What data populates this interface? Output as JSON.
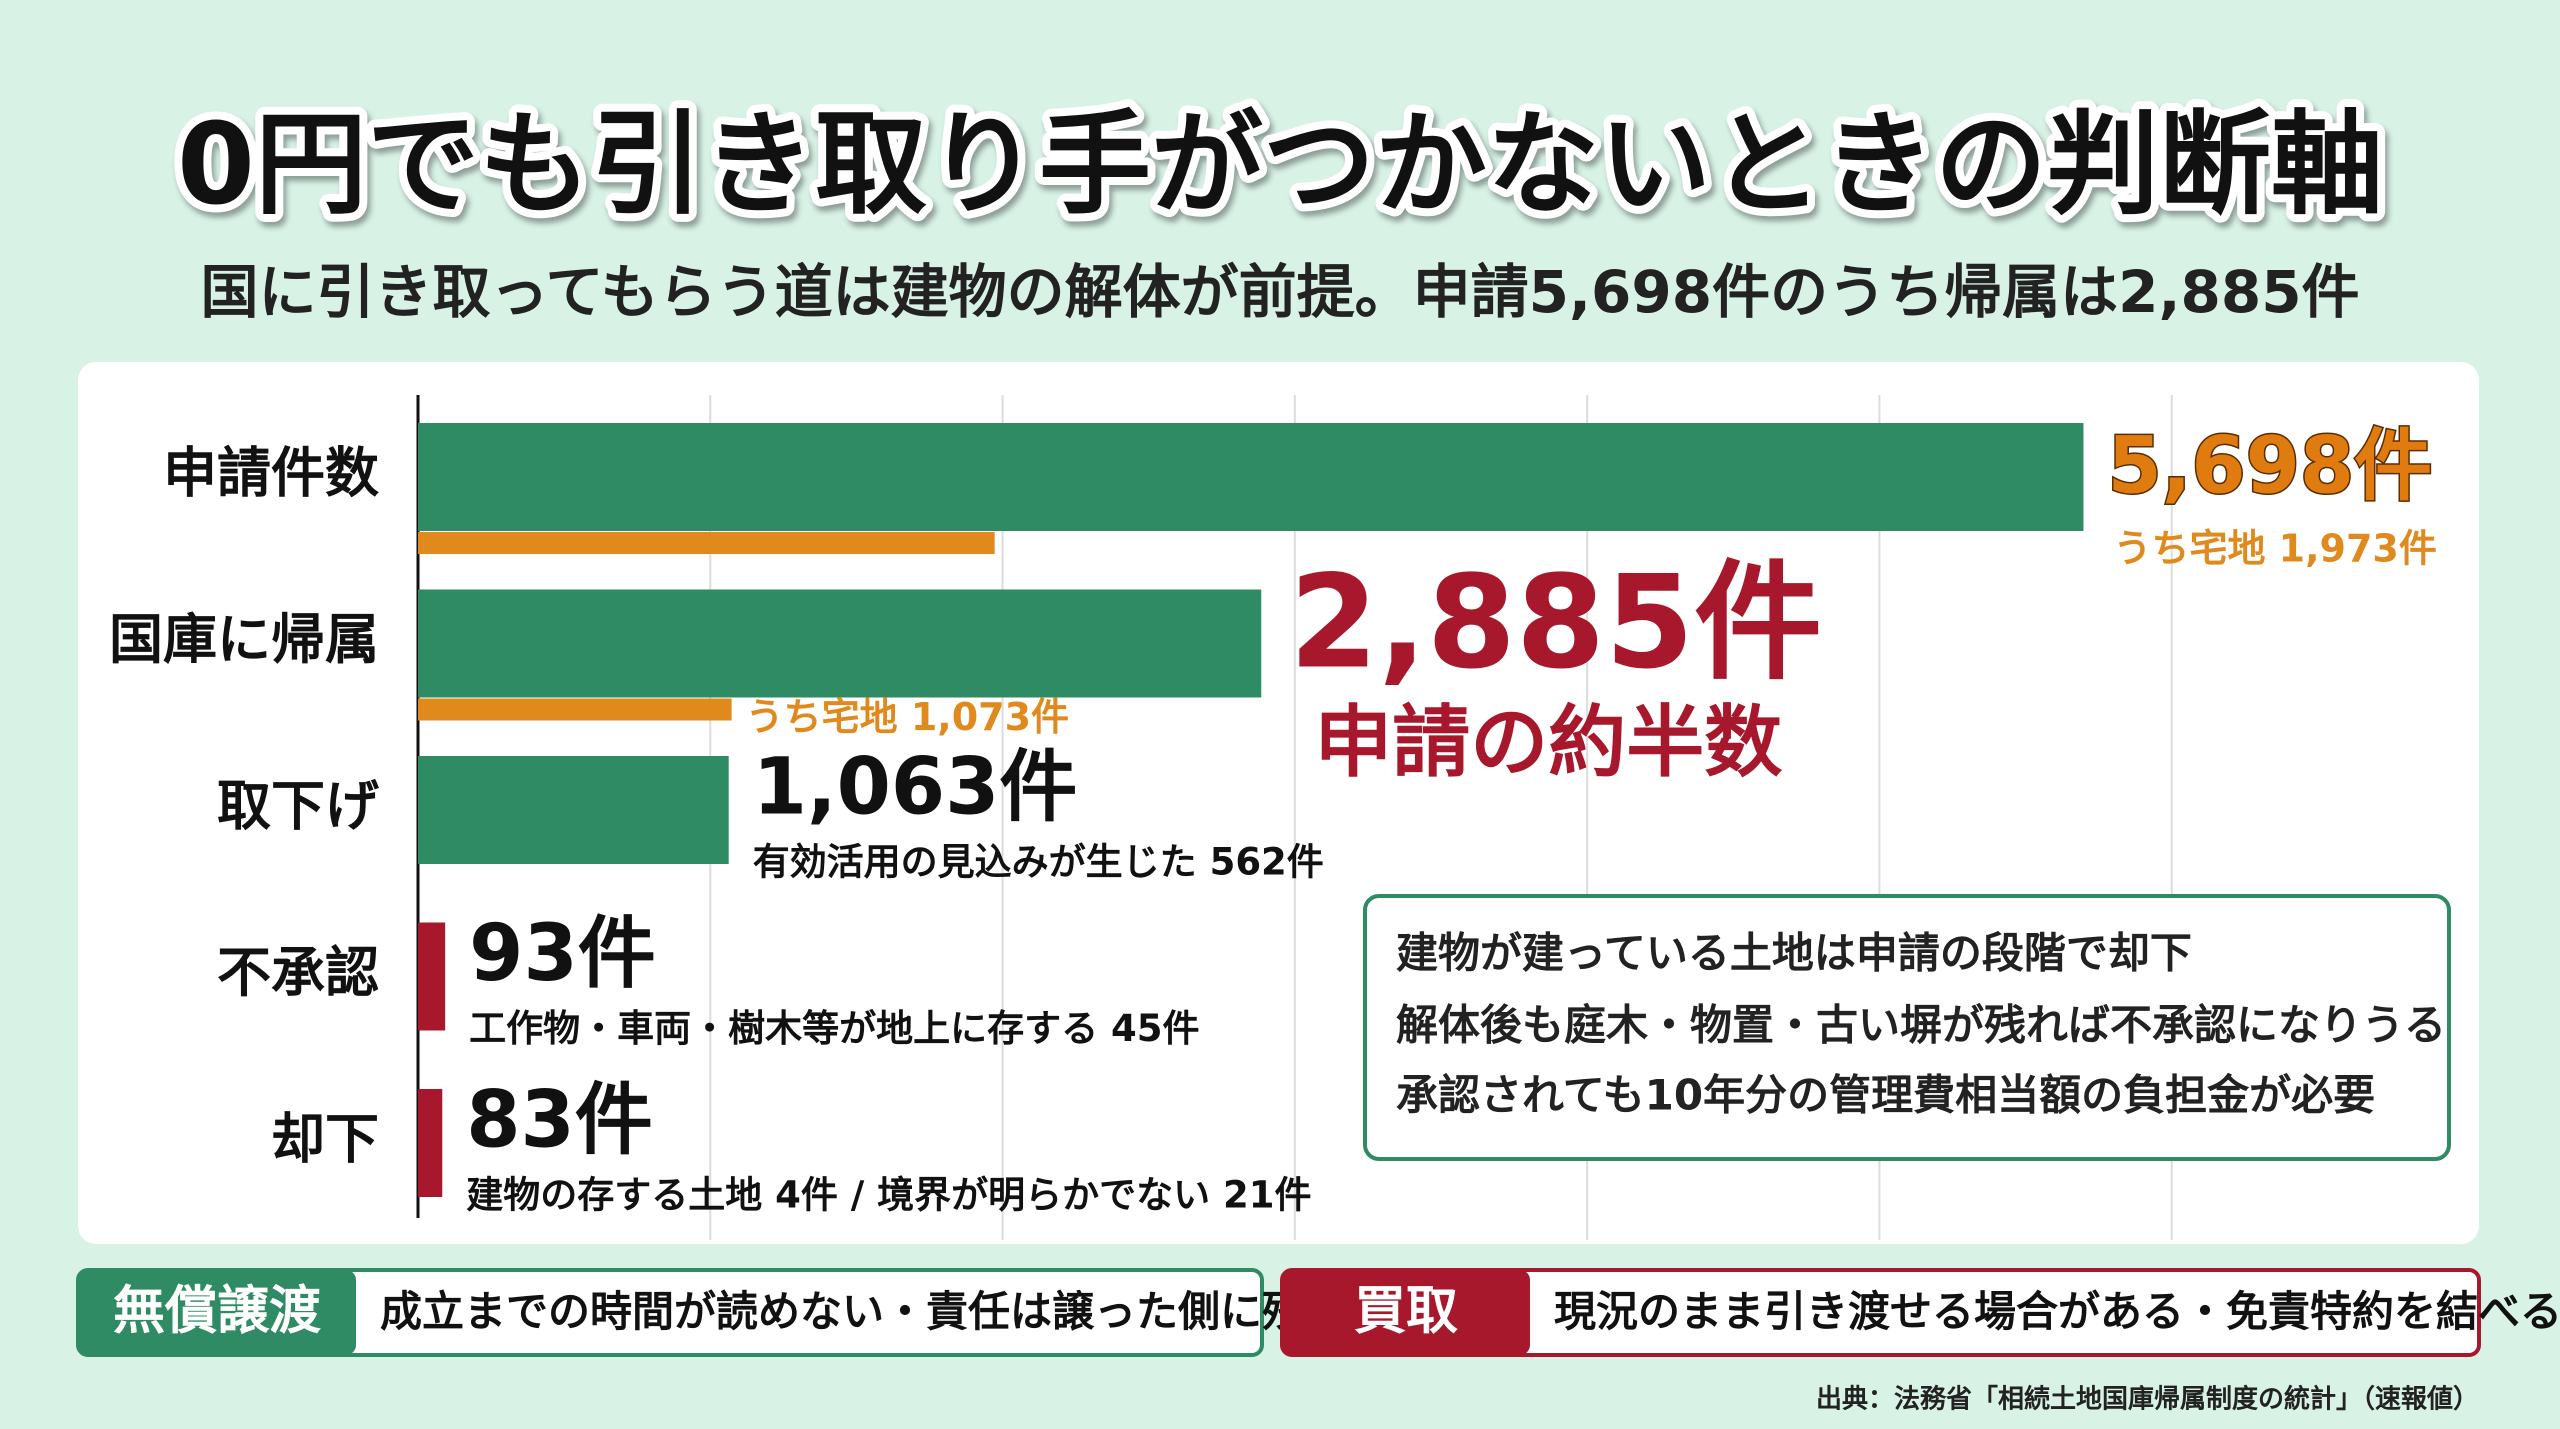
{
  "chart_data": {
    "type": "bar",
    "orientation": "horizontal",
    "title": "0円でも引き取り手がつかないときの判断軸",
    "subtitle": "国に引き取ってもらう道は建物の解体が前提。申請5,698件のうち帰属は2,885件",
    "categories": [
      "申請件数",
      "国庫に帰属",
      "取下げ",
      "不承認",
      "却下"
    ],
    "values": [
      5698,
      2885,
      1063,
      93,
      83
    ],
    "value_labels": [
      "5,698件",
      "2,885件",
      "1,063件",
      "93件",
      "83件"
    ],
    "colors": [
      "#2e8b63",
      "#2e8b63",
      "#2e8b63",
      "#a8182d",
      "#a8182d"
    ],
    "label_colors": [
      "#e07b10",
      "#a8182d",
      "#111111",
      "#111111",
      "#111111"
    ],
    "sub_values": [
      1973,
      1073,
      null,
      null,
      null
    ],
    "sub_value_labels": [
      "うち宅地 1,973件",
      "うち宅地 1,073件",
      null,
      null,
      null
    ],
    "sub_color": "#e08a1e",
    "annotations": [
      null,
      "申請の約半数",
      "有効活用の見込みが生じた 562件",
      "工作物・車両・樹木等が地上に存する 45件",
      "建物の存する土地 4件 / 境界が明らかでない 21件"
    ],
    "xlim": [
      0,
      7000
    ],
    "xticks": [
      1000,
      2000,
      3000,
      4000,
      5000,
      6000
    ],
    "grid": true
  },
  "notes": [
    "建物が建っている土地は申請の段階で却下",
    "解体後も庭木・物置・古い塀が残れば不承認になりうる",
    "承認されても10年分の管理費相当額の負担金が必要"
  ],
  "options": [
    {
      "tag": "無償譲渡",
      "text": "成立までの時間が読めない・責任は譲った側に残る",
      "color": "#2e8b63"
    },
    {
      "tag": "買取",
      "text": "現況のまま引き渡せる場合がある・免責特約を結べる",
      "color": "#a8182d"
    }
  ],
  "source": "出典：法務省「相続土地国庫帰属制度の統計」（速報値）"
}
